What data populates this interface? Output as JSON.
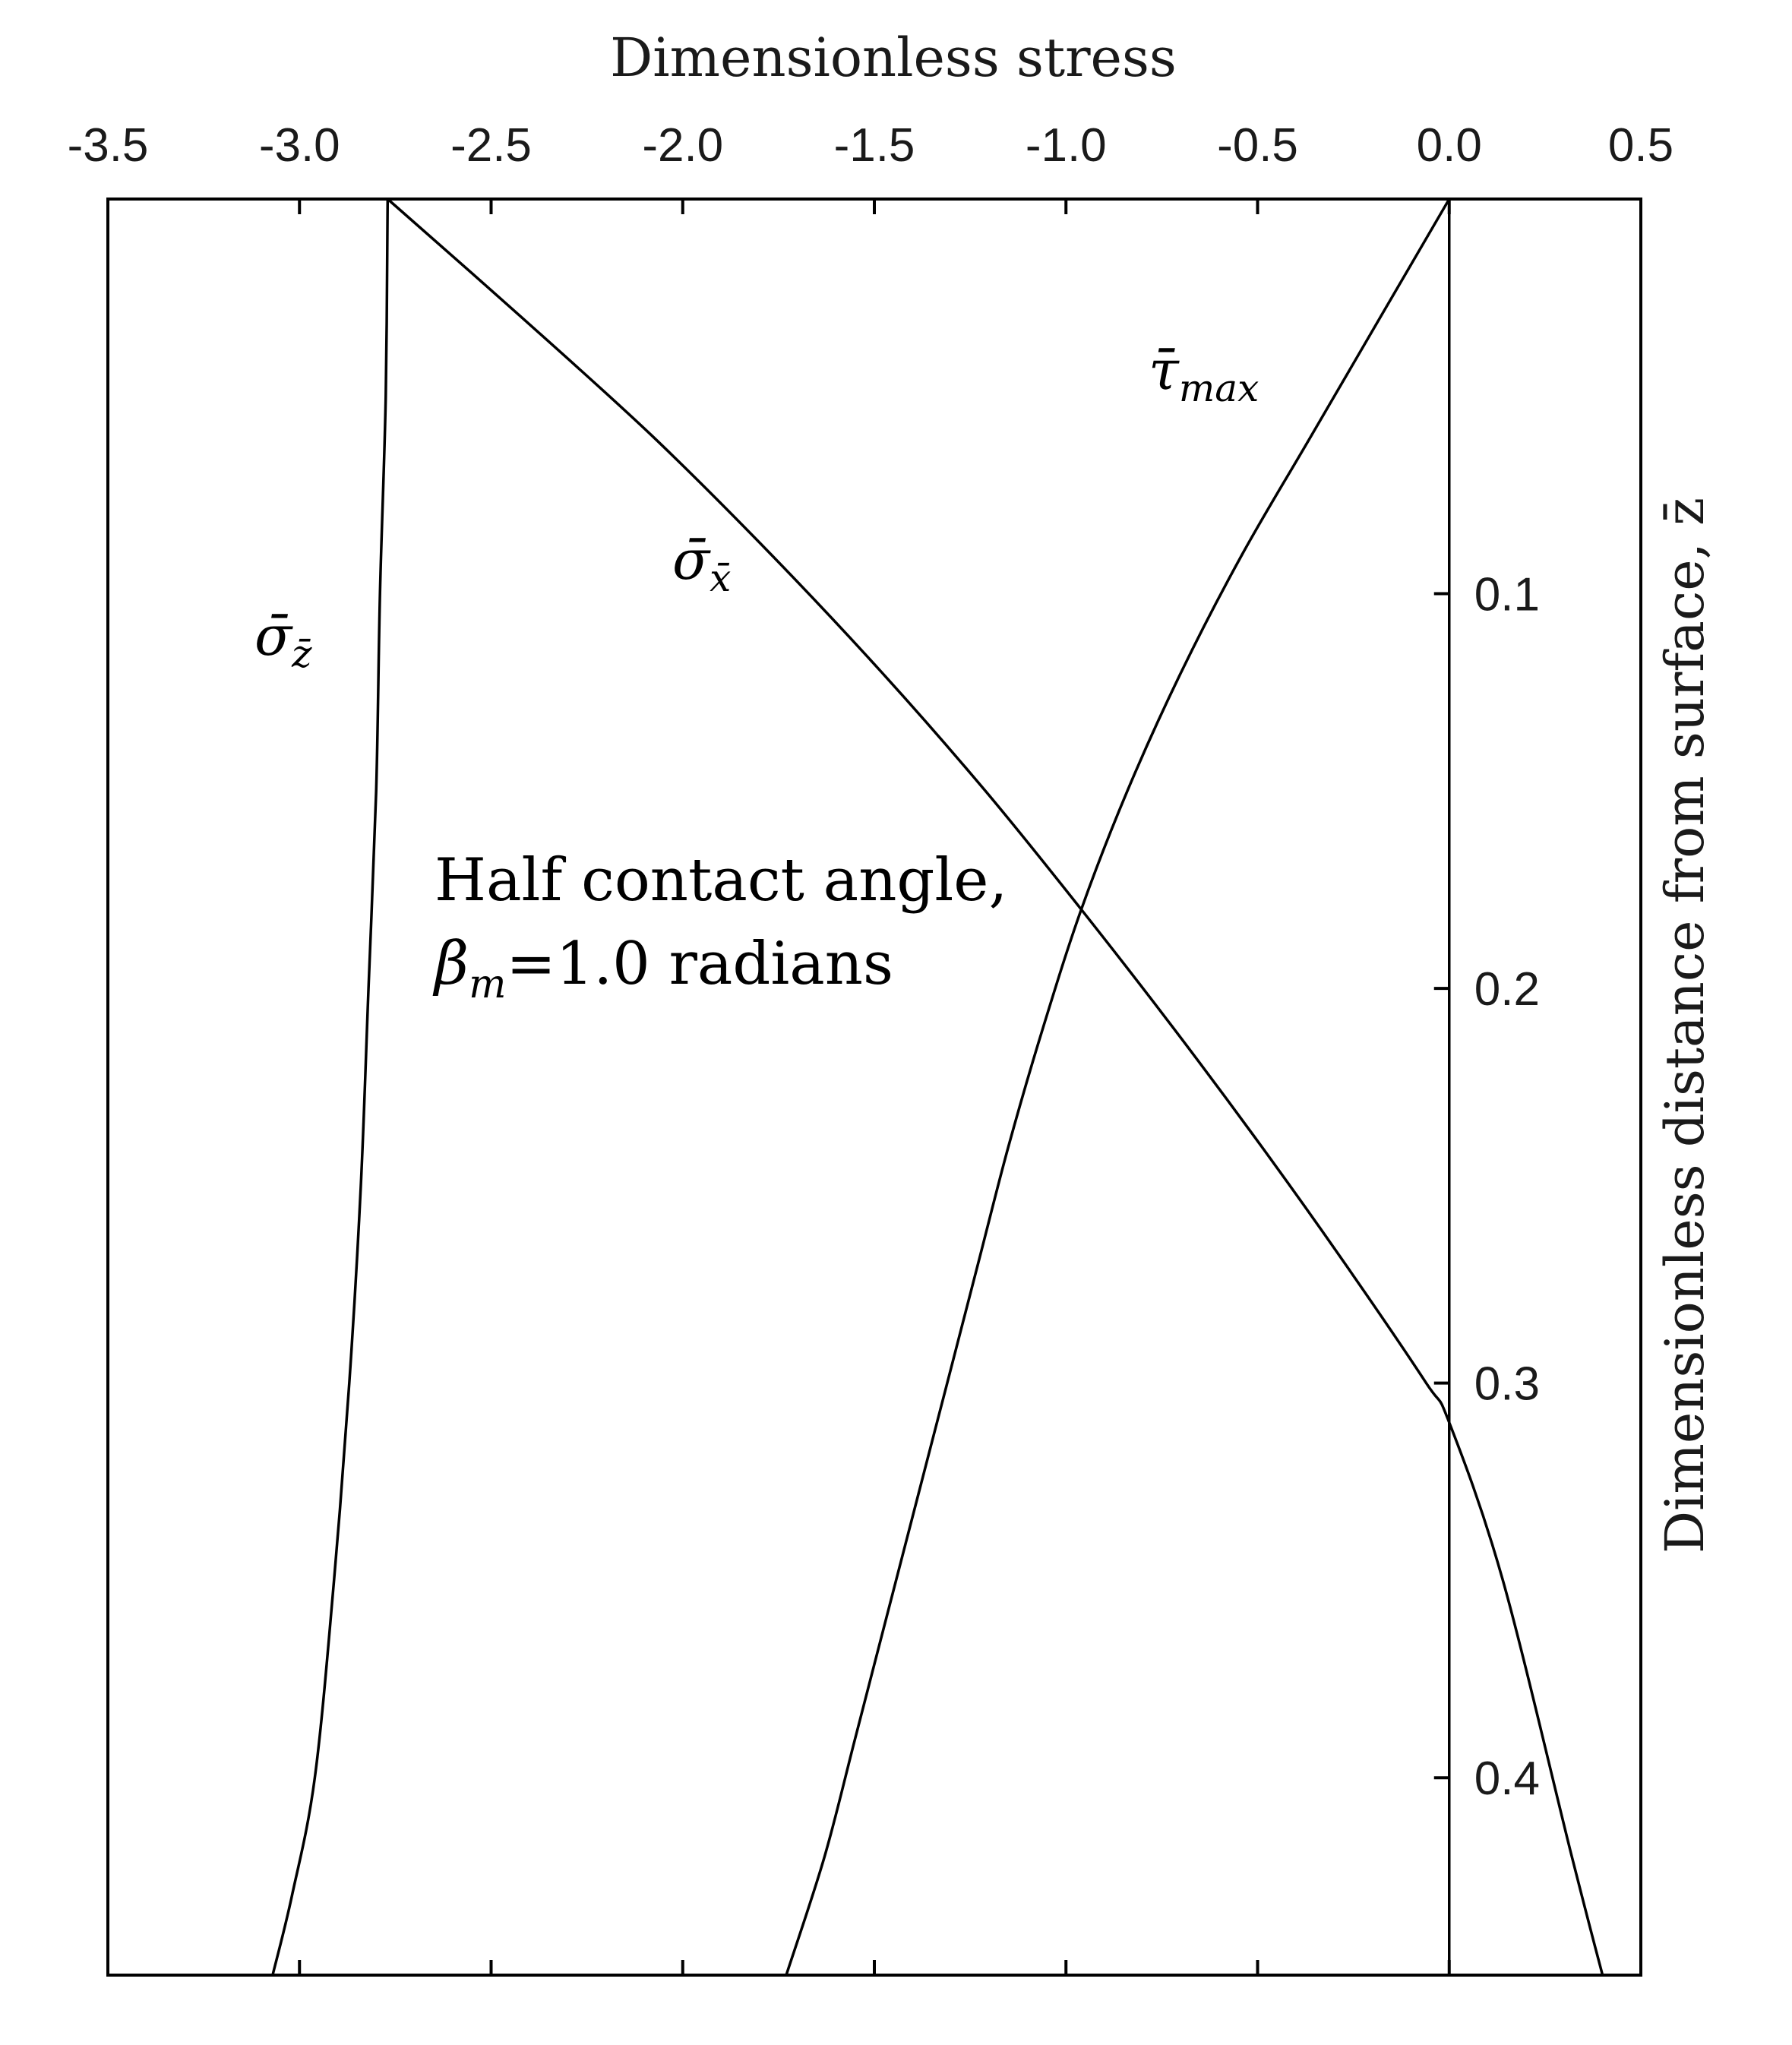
{
  "chart_data": {
    "type": "line",
    "xlabel": "Dimensionless stress",
    "ylabel": "Dimensionless distance from surface, z̄",
    "xlim": [
      -3.5,
      0.5
    ],
    "ylim": [
      0,
      0.45
    ],
    "x_axis_position": "top",
    "y_axis_position": "right",
    "y_reversed": true,
    "grid": false,
    "x_ticks": [
      -3.5,
      -3.0,
      -2.5,
      -2.0,
      -1.5,
      -1.0,
      -0.5,
      0.0,
      0.5
    ],
    "x_tick_labels": [
      "-3.5",
      "-3.0",
      "-2.5",
      "-2.0",
      "-1.5",
      "-1.0",
      "-0.5",
      "0.0",
      "0.5"
    ],
    "y_ticks": [
      0.1,
      0.2,
      0.3,
      0.4
    ],
    "y_tick_labels": [
      "0.1",
      "0.2",
      "0.3",
      "0.4"
    ],
    "annotation": {
      "line1": "Half contact angle,",
      "symbol": "β",
      "subscript": "m",
      "rest": "=1.0 radians"
    },
    "series": [
      {
        "name": "σ̄z̄",
        "label_main": "σ̄",
        "label_sub": "z̄",
        "x": [
          -2.77,
          -2.775,
          -2.79,
          -2.8,
          -2.82,
          -2.84,
          -2.87,
          -2.91,
          -2.96,
          -3.02,
          -3.07
        ],
        "y": [
          0.0,
          0.05,
          0.1,
          0.15,
          0.2,
          0.25,
          0.3,
          0.35,
          0.4,
          0.43,
          0.45
        ]
      },
      {
        "name": "σ̄x̄",
        "label_main": "σ̄",
        "label_sub": "x̄",
        "x": [
          -2.77,
          -2.42,
          -2.08,
          -1.77,
          -1.48,
          -1.21,
          -0.96,
          -0.72,
          -0.49,
          -0.27,
          -0.06,
          0.0,
          0.14,
          0.32,
          0.4
        ],
        "y": [
          0.0,
          0.03,
          0.06,
          0.09,
          0.12,
          0.15,
          0.18,
          0.21,
          0.24,
          0.27,
          0.3,
          0.31,
          0.35,
          0.42,
          0.45
        ]
      },
      {
        "name": "τ̄max",
        "label_main": "τ̄",
        "label_sub": "max",
        "x": [
          0.0,
          -0.18,
          -0.36,
          -0.54,
          -0.7,
          -0.84,
          -0.96,
          -1.06,
          -1.15,
          -1.23,
          -1.31,
          -1.39,
          -1.47,
          -1.55,
          -1.63,
          -1.73
        ],
        "y": [
          0.0,
          0.03,
          0.06,
          0.09,
          0.12,
          0.15,
          0.18,
          0.21,
          0.24,
          0.27,
          0.3,
          0.33,
          0.36,
          0.39,
          0.42,
          0.45
        ]
      }
    ]
  }
}
